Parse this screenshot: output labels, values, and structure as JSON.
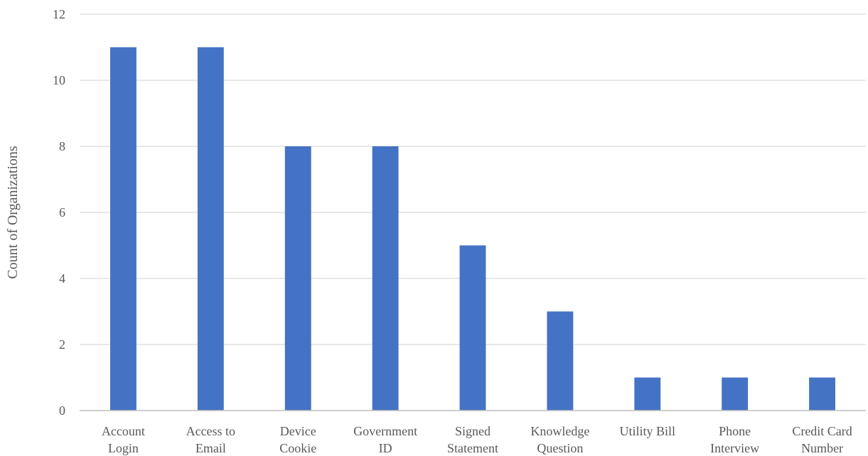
{
  "chart_data": {
    "type": "bar",
    "title": "",
    "xlabel": "",
    "ylabel": "Count of Organizations",
    "ylim": [
      0,
      12
    ],
    "yticks": [
      0,
      2,
      4,
      6,
      8,
      10,
      12
    ],
    "grid": true,
    "legend": "none",
    "categories": [
      [
        "Account",
        "Login"
      ],
      [
        "Access to",
        "Email"
      ],
      [
        "Device",
        "Cookie"
      ],
      [
        "Government",
        "ID"
      ],
      [
        "Signed",
        "Statement"
      ],
      [
        "Knowledge",
        "Question"
      ],
      [
        "Utility Bill"
      ],
      [
        "Phone",
        "Interview"
      ],
      [
        "Credit Card",
        "Number"
      ]
    ],
    "values": [
      11,
      11,
      8,
      8,
      5,
      3,
      1,
      1,
      1
    ],
    "colors": {
      "bar": "#4472c4",
      "grid": "#d9d9d9",
      "axis": "#bfbfbf",
      "text": "#595959"
    }
  }
}
